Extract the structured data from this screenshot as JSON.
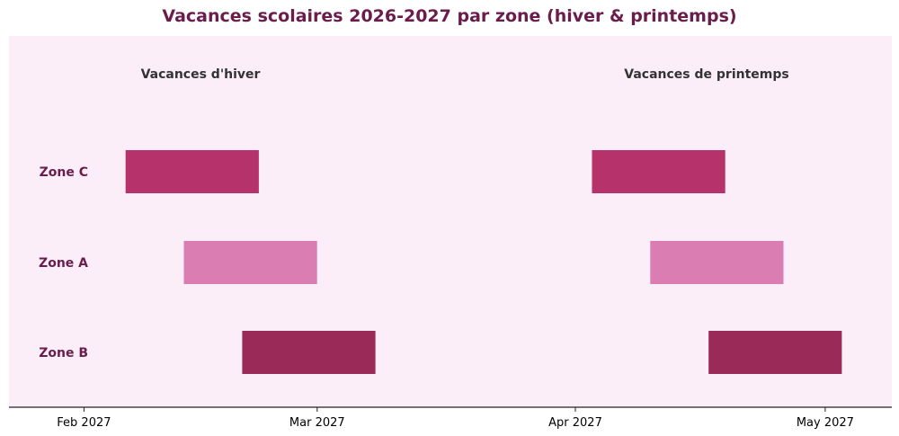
{
  "chart_data": {
    "type": "gantt",
    "title": "Vacances scolaires 2026-2027 par zone (hiver & printemps)",
    "x_axis": {
      "type": "date",
      "range": [
        "2027-01-23",
        "2027-05-09"
      ],
      "ticks": [
        {
          "date": "2027-02-01",
          "label": "Feb 2027"
        },
        {
          "date": "2027-03-01",
          "label": "Mar 2027"
        },
        {
          "date": "2027-04-01",
          "label": "Apr 2027"
        },
        {
          "date": "2027-05-01",
          "label": "May 2027"
        }
      ]
    },
    "periods": [
      {
        "name": "Vacances d'hiver"
      },
      {
        "name": "Vacances de printemps"
      }
    ],
    "zones": [
      {
        "name": "Zone C",
        "color": "#b5326a",
        "intervals": [
          {
            "period": "Vacances d'hiver",
            "start": "2027-02-06",
            "end": "2027-02-22"
          },
          {
            "period": "Vacances de printemps",
            "start": "2027-04-03",
            "end": "2027-04-19"
          }
        ]
      },
      {
        "name": "Zone A",
        "color": "#da7db3",
        "intervals": [
          {
            "period": "Vacances d'hiver",
            "start": "2027-02-13",
            "end": "2027-03-01"
          },
          {
            "period": "Vacances de printemps",
            "start": "2027-04-10",
            "end": "2027-04-26"
          }
        ]
      },
      {
        "name": "Zone B",
        "color": "#9a2a58",
        "intervals": [
          {
            "period": "Vacances d'hiver",
            "start": "2027-02-20",
            "end": "2027-03-08"
          },
          {
            "period": "Vacances de printemps",
            "start": "2027-04-17",
            "end": "2027-05-03"
          }
        ]
      }
    ],
    "colors": {
      "background": "#fbeef8",
      "title": "#6a1d4b",
      "zone_label": "#6a1d4b",
      "period_label": "#333333",
      "axis": "#222222"
    }
  }
}
